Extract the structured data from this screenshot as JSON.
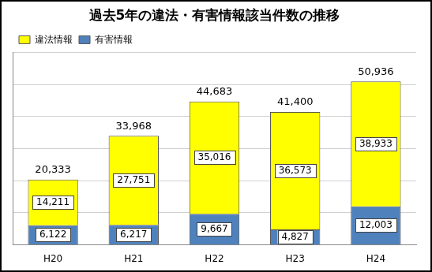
{
  "chart_data": {
    "type": "bar",
    "title": "過去5年の違法・有害情報該当件数の推移",
    "categories": [
      "H20",
      "H21",
      "H22",
      "H23",
      "H24"
    ],
    "series": [
      {
        "name": "有害情報",
        "color": "#4f81bd",
        "values": [
          6122,
          6217,
          9667,
          4827,
          12003
        ],
        "value_labels": [
          "6,122",
          "6,217",
          "9,667",
          "4,827",
          "12,003"
        ]
      },
      {
        "name": "違法情報",
        "color": "#ffff00",
        "values": [
          14211,
          27751,
          35016,
          36573,
          38933
        ],
        "value_labels": [
          "14,211",
          "27,751",
          "35,016",
          "36,573",
          "38,933"
        ]
      }
    ],
    "totals": [
      20333,
      33968,
      44683,
      41400,
      50936
    ],
    "total_labels": [
      "20,333",
      "33,968",
      "44,683",
      "41,400",
      "50,936"
    ],
    "ylim": [
      0,
      60000
    ],
    "yticks": [
      0,
      10000,
      20000,
      30000,
      40000,
      50000,
      60000
    ],
    "grid": true,
    "stacked": true,
    "data_labels": true,
    "tick_labels": "x",
    "legend": "upper left"
  }
}
